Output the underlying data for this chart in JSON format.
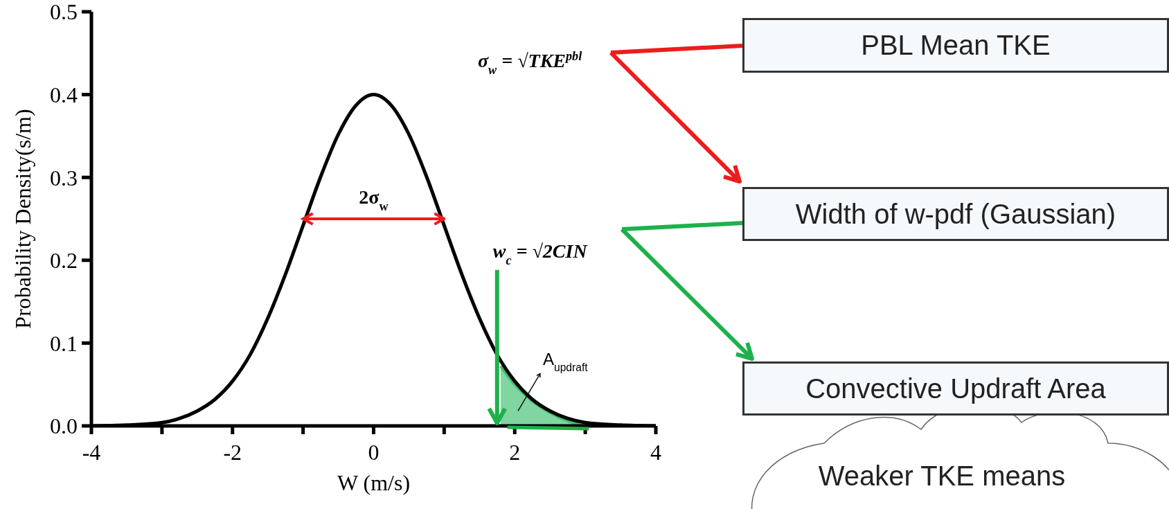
{
  "chart_data": {
    "type": "line",
    "xlabel": "W (m/s)",
    "ylabel": "Probability Density(s/m)",
    "xlim": [
      -4,
      4
    ],
    "ylim": [
      0,
      0.5
    ],
    "xticks": [
      -4,
      {
        "value": -3,
        "label": null
      },
      -2,
      {
        "value": -1,
        "label": null
      },
      0,
      {
        "value": 1,
        "label": null
      },
      2,
      {
        "value": 3,
        "label": null
      },
      4
    ],
    "yticks": [
      {
        "value": 0,
        "label": "0.0"
      },
      0.1,
      0.2,
      0.3,
      0.4,
      0.5
    ],
    "grid": false,
    "legend": false,
    "marker": "none",
    "line_style": "solid",
    "x": [
      -4,
      -3.5,
      -3,
      -2.75,
      -2.5,
      -2.25,
      -2,
      -1.75,
      -1.5,
      -1.25,
      -1,
      -0.75,
      -0.5,
      -0.25,
      0,
      0.25,
      0.5,
      0.75,
      1,
      1.25,
      1.5,
      1.75,
      2,
      2.25,
      2.5,
      2.75,
      3,
      3.5,
      4
    ],
    "series": [
      {
        "color": "#000000",
        "values": [
          0,
          0.001,
          0.004,
          0.009,
          0.018,
          0.032,
          0.054,
          0.086,
          0.13,
          0.183,
          0.242,
          0.301,
          0.352,
          0.387,
          0.4,
          0.387,
          0.352,
          0.301,
          0.242,
          0.183,
          0.13,
          0.086,
          0.054,
          0.032,
          0.018,
          0.009,
          0.004,
          0.001,
          0
        ]
      },
      {
        "type": "area",
        "color": "#3cbf6e",
        "x": [
          1.8,
          2,
          2.25,
          2.5,
          2.75,
          3
        ],
        "values": [
          0.072,
          0.05,
          0.03,
          0.016,
          0.006,
          0
        ]
      }
    ],
    "annotations": [
      "σ$_{w}$ = √TKE$^{pbl}$",
      "2σ$_{w}$",
      "w$_{c}$ = √2CIN",
      "A$_{updraft}$",
      "PBL Mean TKE",
      "Width of w-pdf (Gaussian)",
      "Convective Updraft Area",
      "Weaker TKE means"
    ]
  }
}
